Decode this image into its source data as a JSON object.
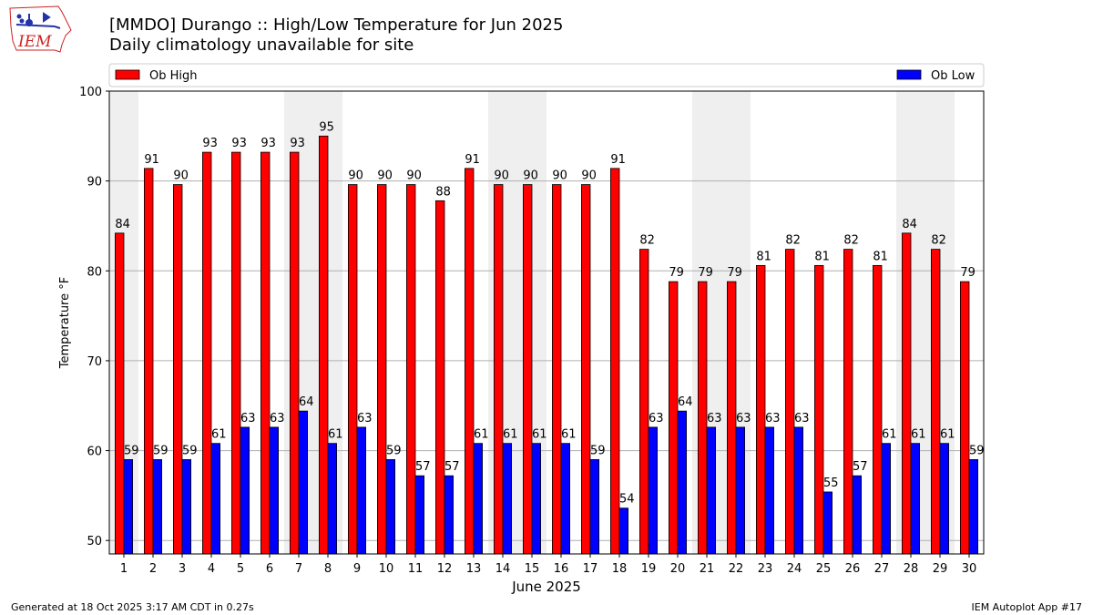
{
  "logo": {
    "text": "IEM"
  },
  "header": {
    "title_line1": "[MMDO] Durango :: High/Low Temperature for Jun 2025",
    "title_line2": "Daily climatology unavailable for site"
  },
  "footer": {
    "generated": "Generated at 18 Oct 2025 3:17 AM CDT in 0.27s",
    "app": "IEM Autoplot App #17"
  },
  "colors": {
    "high": "#ff0000",
    "low": "#0000ff",
    "weekend_band": "#efefef",
    "grid": "#b0b0b0",
    "logo_red": "#cc2222",
    "logo_blue": "#2233aa"
  },
  "chart_data": {
    "type": "bar",
    "xlabel": "June 2025",
    "ylabel": "Temperature °F",
    "ylim": [
      48.5,
      100
    ],
    "yticks": [
      50,
      60,
      70,
      80,
      90,
      100
    ],
    "grid": true,
    "legend_placement": "top, spanning plot width",
    "categories": [
      "1",
      "2",
      "3",
      "4",
      "5",
      "6",
      "7",
      "8",
      "9",
      "10",
      "11",
      "12",
      "13",
      "14",
      "15",
      "16",
      "17",
      "18",
      "19",
      "20",
      "21",
      "22",
      "23",
      "24",
      "25",
      "26",
      "27",
      "28",
      "29",
      "30"
    ],
    "weekend_days": [
      1,
      7,
      8,
      14,
      15,
      21,
      22,
      28,
      29
    ],
    "series": [
      {
        "name": "Ob High",
        "values": [
          84.2,
          91.4,
          89.6,
          93.2,
          93.2,
          93.2,
          93.2,
          95,
          89.6,
          89.6,
          89.6,
          87.8,
          91.4,
          89.6,
          89.6,
          89.6,
          89.6,
          91.4,
          82.4,
          78.8,
          78.8,
          78.8,
          80.6,
          82.4,
          80.6,
          82.4,
          80.6,
          84.2,
          82.4,
          78.8
        ],
        "labels": [
          "84",
          "91",
          "90",
          "93",
          "93",
          "93",
          "93",
          "95",
          "90",
          "90",
          "90",
          "88",
          "91",
          "90",
          "90",
          "90",
          "90",
          "91",
          "82",
          "79",
          "79",
          "79",
          "81",
          "82",
          "81",
          "82",
          "81",
          "84",
          "82",
          "79"
        ]
      },
      {
        "name": "Ob Low",
        "values": [
          59,
          59,
          59,
          60.8,
          62.6,
          62.6,
          64.4,
          60.8,
          62.6,
          59,
          57.2,
          57.2,
          60.8,
          60.8,
          60.8,
          60.8,
          59,
          53.6,
          62.6,
          64.4,
          62.6,
          62.6,
          62.6,
          62.6,
          55.4,
          57.2,
          60.8,
          60.8,
          60.8,
          59
        ],
        "labels": [
          "59",
          "59",
          "59",
          "61",
          "63",
          "63",
          "64",
          "61",
          "63",
          "59",
          "57",
          "57",
          "61",
          "61",
          "61",
          "61",
          "59",
          "54",
          "63",
          "64",
          "63",
          "63",
          "63",
          "63",
          "55",
          "57",
          "61",
          "61",
          "61",
          "59"
        ]
      }
    ]
  }
}
